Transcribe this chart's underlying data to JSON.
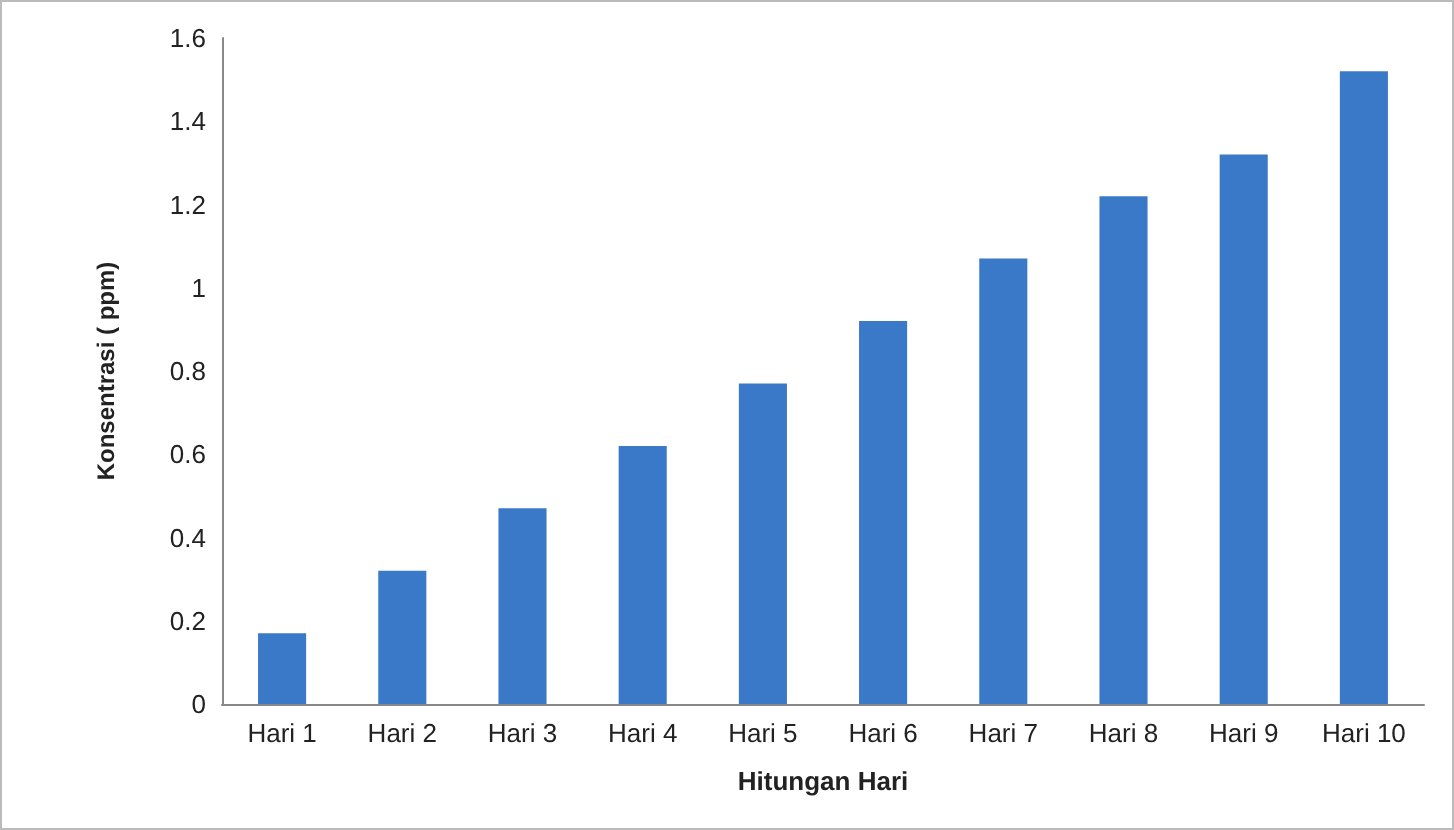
{
  "chart_data": {
    "type": "bar",
    "xlabel": "Hitungan Hari",
    "ylabel": "Konsentrasi ( ppm)",
    "categories": [
      "Hari 1",
      "Hari 2",
      "Hari 3",
      "Hari 4",
      "Hari 5",
      "Hari 6",
      "Hari 7",
      "Hari 8",
      "Hari 9",
      "Hari 10"
    ],
    "values": [
      0.17,
      0.32,
      0.47,
      0.62,
      0.77,
      0.92,
      1.07,
      1.22,
      1.32,
      1.52
    ],
    "color": "#3a78c8",
    "ylim": [
      0,
      1.6
    ],
    "yticks": [
      0,
      0.2,
      0.4,
      0.6,
      0.8,
      1,
      1.2,
      1.4,
      1.6
    ],
    "grid": false
  }
}
